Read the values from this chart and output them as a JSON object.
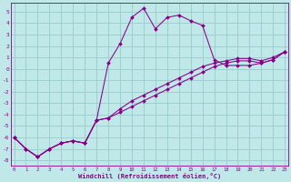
{
  "xlabel": "Windchill (Refroidissement éolien,°C)",
  "bg_color": "#c0e8e8",
  "grid_color": "#98cccc",
  "line_color": "#880088",
  "xlim": [
    -0.3,
    23.3
  ],
  "ylim": [
    -8.5,
    5.8
  ],
  "yticks": [
    5,
    4,
    3,
    2,
    1,
    0,
    -1,
    -2,
    -3,
    -4,
    -5,
    -6,
    -7,
    -8
  ],
  "xticks": [
    0,
    1,
    2,
    3,
    4,
    5,
    6,
    7,
    8,
    9,
    10,
    11,
    12,
    13,
    14,
    15,
    16,
    17,
    18,
    19,
    20,
    21,
    22,
    23
  ],
  "s1_x": [
    0,
    1,
    2,
    3,
    4,
    5,
    6,
    7,
    8,
    9,
    10,
    11,
    12,
    13,
    14,
    15,
    16,
    17,
    18,
    19,
    20,
    21,
    22,
    23
  ],
  "s1_y": [
    -6.0,
    -7.0,
    -7.7,
    -7.0,
    -6.5,
    -6.3,
    -6.5,
    -4.5,
    0.5,
    2.2,
    4.5,
    5.3,
    3.5,
    4.5,
    4.7,
    4.2,
    3.8,
    0.8,
    0.3,
    0.3,
    0.3,
    0.5,
    0.8,
    1.5
  ],
  "s2_x": [
    0,
    1,
    2,
    3,
    4,
    5,
    6,
    7,
    8,
    9,
    10,
    11,
    12,
    13,
    14,
    15,
    16,
    17,
    18,
    19,
    20,
    21,
    22,
    23
  ],
  "s2_y": [
    -6.0,
    -7.0,
    -7.7,
    -7.0,
    -6.5,
    -6.3,
    -6.5,
    -4.5,
    -4.3,
    -3.8,
    -3.3,
    -2.8,
    -2.3,
    -1.8,
    -1.3,
    -0.8,
    -0.3,
    0.2,
    0.5,
    0.7,
    0.7,
    0.5,
    0.8,
    1.5
  ],
  "s3_x": [
    0,
    1,
    2,
    3,
    4,
    5,
    6,
    7,
    8,
    9,
    10,
    11,
    12,
    13,
    14,
    15,
    16,
    17,
    18,
    19,
    20,
    21,
    22,
    23
  ],
  "s3_y": [
    -6.0,
    -7.0,
    -7.7,
    -7.0,
    -6.5,
    -6.3,
    -6.5,
    -4.5,
    -4.3,
    -3.5,
    -2.8,
    -2.3,
    -1.8,
    -1.3,
    -0.8,
    -0.3,
    0.2,
    0.5,
    0.7,
    0.9,
    0.9,
    0.7,
    1.0,
    1.5
  ]
}
